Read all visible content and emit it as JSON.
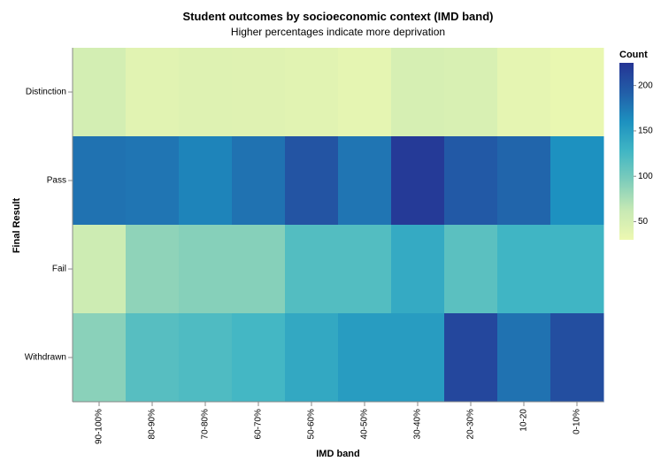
{
  "chart_data": {
    "type": "heatmap",
    "title": "Student outcomes by socioeconomic context (IMD band)",
    "subtitle": "Higher percentages indicate more deprivation",
    "xlabel": "IMD band",
    "ylabel": "Final Result",
    "x_categories": [
      "90-100%",
      "80-90%",
      "70-80%",
      "60-70%",
      "50-60%",
      "40-50%",
      "30-40%",
      "20-30%",
      "10-20",
      "0-10%"
    ],
    "y_categories": [
      "Distinction",
      "Pass",
      "Fail",
      "Withdrawn"
    ],
    "values": [
      [
        52,
        40,
        43,
        42,
        40,
        37,
        50,
        48,
        37,
        33
      ],
      [
        180,
        178,
        168,
        180,
        200,
        178,
        220,
        196,
        188,
        160
      ],
      [
        57,
        88,
        92,
        92,
        118,
        118,
        138,
        114,
        128,
        128
      ],
      [
        90,
        116,
        120,
        126,
        140,
        150,
        150,
        210,
        180,
        205
      ]
    ],
    "legend": {
      "title": "Count",
      "ticks": [
        50,
        100,
        150,
        200
      ],
      "domain": [
        30,
        225
      ],
      "position": "right"
    },
    "colors": {
      "scale": [
        "#edf8b1",
        "#c7e9b4",
        "#7fcdbb",
        "#41b6c4",
        "#1d91c0",
        "#225ea8",
        "#253494"
      ],
      "axis": "#888888"
    }
  }
}
